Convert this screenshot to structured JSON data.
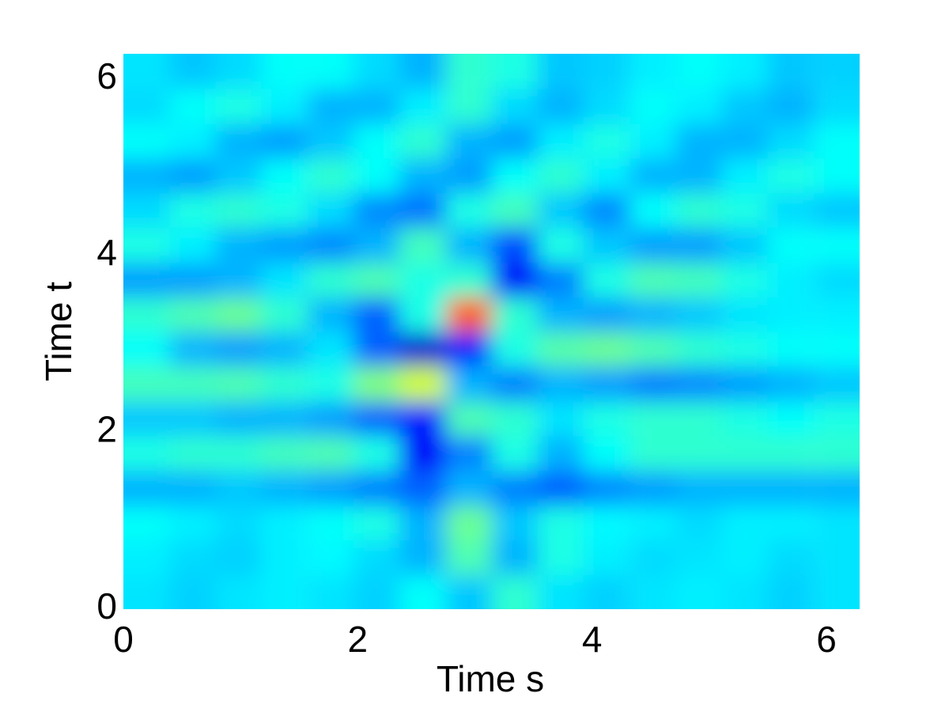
{
  "chart_data": {
    "type": "heatmap",
    "xlabel": "Time s",
    "ylabel": "Time t",
    "xlim": [
      0,
      6.283
    ],
    "ylim": [
      0,
      6.283
    ],
    "xticks": [
      0,
      2,
      4,
      6
    ],
    "yticks": [
      0,
      2,
      4,
      6
    ],
    "colormap": "jet",
    "x": [
      0.2,
      0.59,
      0.98,
      1.37,
      1.77,
      2.16,
      2.55,
      2.95,
      3.34,
      3.73,
      4.12,
      4.52,
      4.91,
      5.3,
      5.69,
      6.09
    ],
    "y": [
      0.2,
      0.59,
      0.98,
      1.37,
      1.77,
      2.16,
      2.55,
      2.95,
      3.34,
      3.73,
      4.12,
      4.52,
      4.91,
      5.3,
      5.69,
      6.09
    ],
    "z": [
      [
        0.35,
        0.33,
        0.35,
        0.36,
        0.35,
        0.33,
        0.38,
        0.32,
        0.42,
        0.35,
        0.33,
        0.35,
        0.36,
        0.35,
        0.33,
        0.35
      ],
      [
        0.36,
        0.34,
        0.33,
        0.36,
        0.37,
        0.34,
        0.3,
        0.45,
        0.3,
        0.4,
        0.36,
        0.34,
        0.35,
        0.36,
        0.34,
        0.35
      ],
      [
        0.38,
        0.36,
        0.34,
        0.36,
        0.38,
        0.4,
        0.3,
        0.48,
        0.32,
        0.4,
        0.37,
        0.36,
        0.34,
        0.36,
        0.36,
        0.35
      ],
      [
        0.3,
        0.3,
        0.32,
        0.3,
        0.28,
        0.25,
        0.22,
        0.3,
        0.25,
        0.22,
        0.26,
        0.28,
        0.3,
        0.3,
        0.3,
        0.3
      ],
      [
        0.4,
        0.42,
        0.42,
        0.44,
        0.45,
        0.4,
        0.12,
        0.25,
        0.4,
        0.3,
        0.38,
        0.42,
        0.42,
        0.42,
        0.42,
        0.42
      ],
      [
        0.32,
        0.32,
        0.3,
        0.3,
        0.28,
        0.22,
        0.15,
        0.45,
        0.42,
        0.35,
        0.4,
        0.42,
        0.42,
        0.4,
        0.38,
        0.4
      ],
      [
        0.44,
        0.44,
        0.45,
        0.42,
        0.4,
        0.5,
        0.58,
        0.3,
        0.25,
        0.3,
        0.28,
        0.25,
        0.26,
        0.28,
        0.3,
        0.32
      ],
      [
        0.38,
        0.3,
        0.28,
        0.3,
        0.35,
        0.22,
        0.08,
        0.15,
        0.4,
        0.46,
        0.48,
        0.45,
        0.42,
        0.4,
        0.38,
        0.38
      ],
      [
        0.42,
        0.45,
        0.48,
        0.42,
        0.3,
        0.22,
        0.4,
        0.78,
        0.42,
        0.3,
        0.28,
        0.3,
        0.32,
        0.35,
        0.36,
        0.36
      ],
      [
        0.28,
        0.28,
        0.3,
        0.35,
        0.42,
        0.45,
        0.4,
        0.42,
        0.12,
        0.25,
        0.4,
        0.45,
        0.44,
        0.4,
        0.36,
        0.34
      ],
      [
        0.4,
        0.36,
        0.3,
        0.28,
        0.26,
        0.3,
        0.44,
        0.3,
        0.2,
        0.4,
        0.32,
        0.28,
        0.28,
        0.32,
        0.38,
        0.38
      ],
      [
        0.34,
        0.4,
        0.42,
        0.4,
        0.34,
        0.26,
        0.24,
        0.4,
        0.44,
        0.32,
        0.26,
        0.38,
        0.42,
        0.4,
        0.34,
        0.32
      ],
      [
        0.3,
        0.28,
        0.32,
        0.38,
        0.42,
        0.38,
        0.3,
        0.28,
        0.38,
        0.42,
        0.36,
        0.3,
        0.3,
        0.36,
        0.4,
        0.38
      ],
      [
        0.38,
        0.36,
        0.3,
        0.28,
        0.32,
        0.38,
        0.42,
        0.3,
        0.28,
        0.36,
        0.4,
        0.36,
        0.3,
        0.3,
        0.34,
        0.38
      ],
      [
        0.34,
        0.38,
        0.4,
        0.36,
        0.3,
        0.3,
        0.36,
        0.42,
        0.34,
        0.3,
        0.34,
        0.38,
        0.36,
        0.32,
        0.3,
        0.34
      ],
      [
        0.35,
        0.32,
        0.34,
        0.38,
        0.38,
        0.34,
        0.3,
        0.42,
        0.4,
        0.32,
        0.33,
        0.36,
        0.38,
        0.36,
        0.32,
        0.33
      ]
    ]
  }
}
